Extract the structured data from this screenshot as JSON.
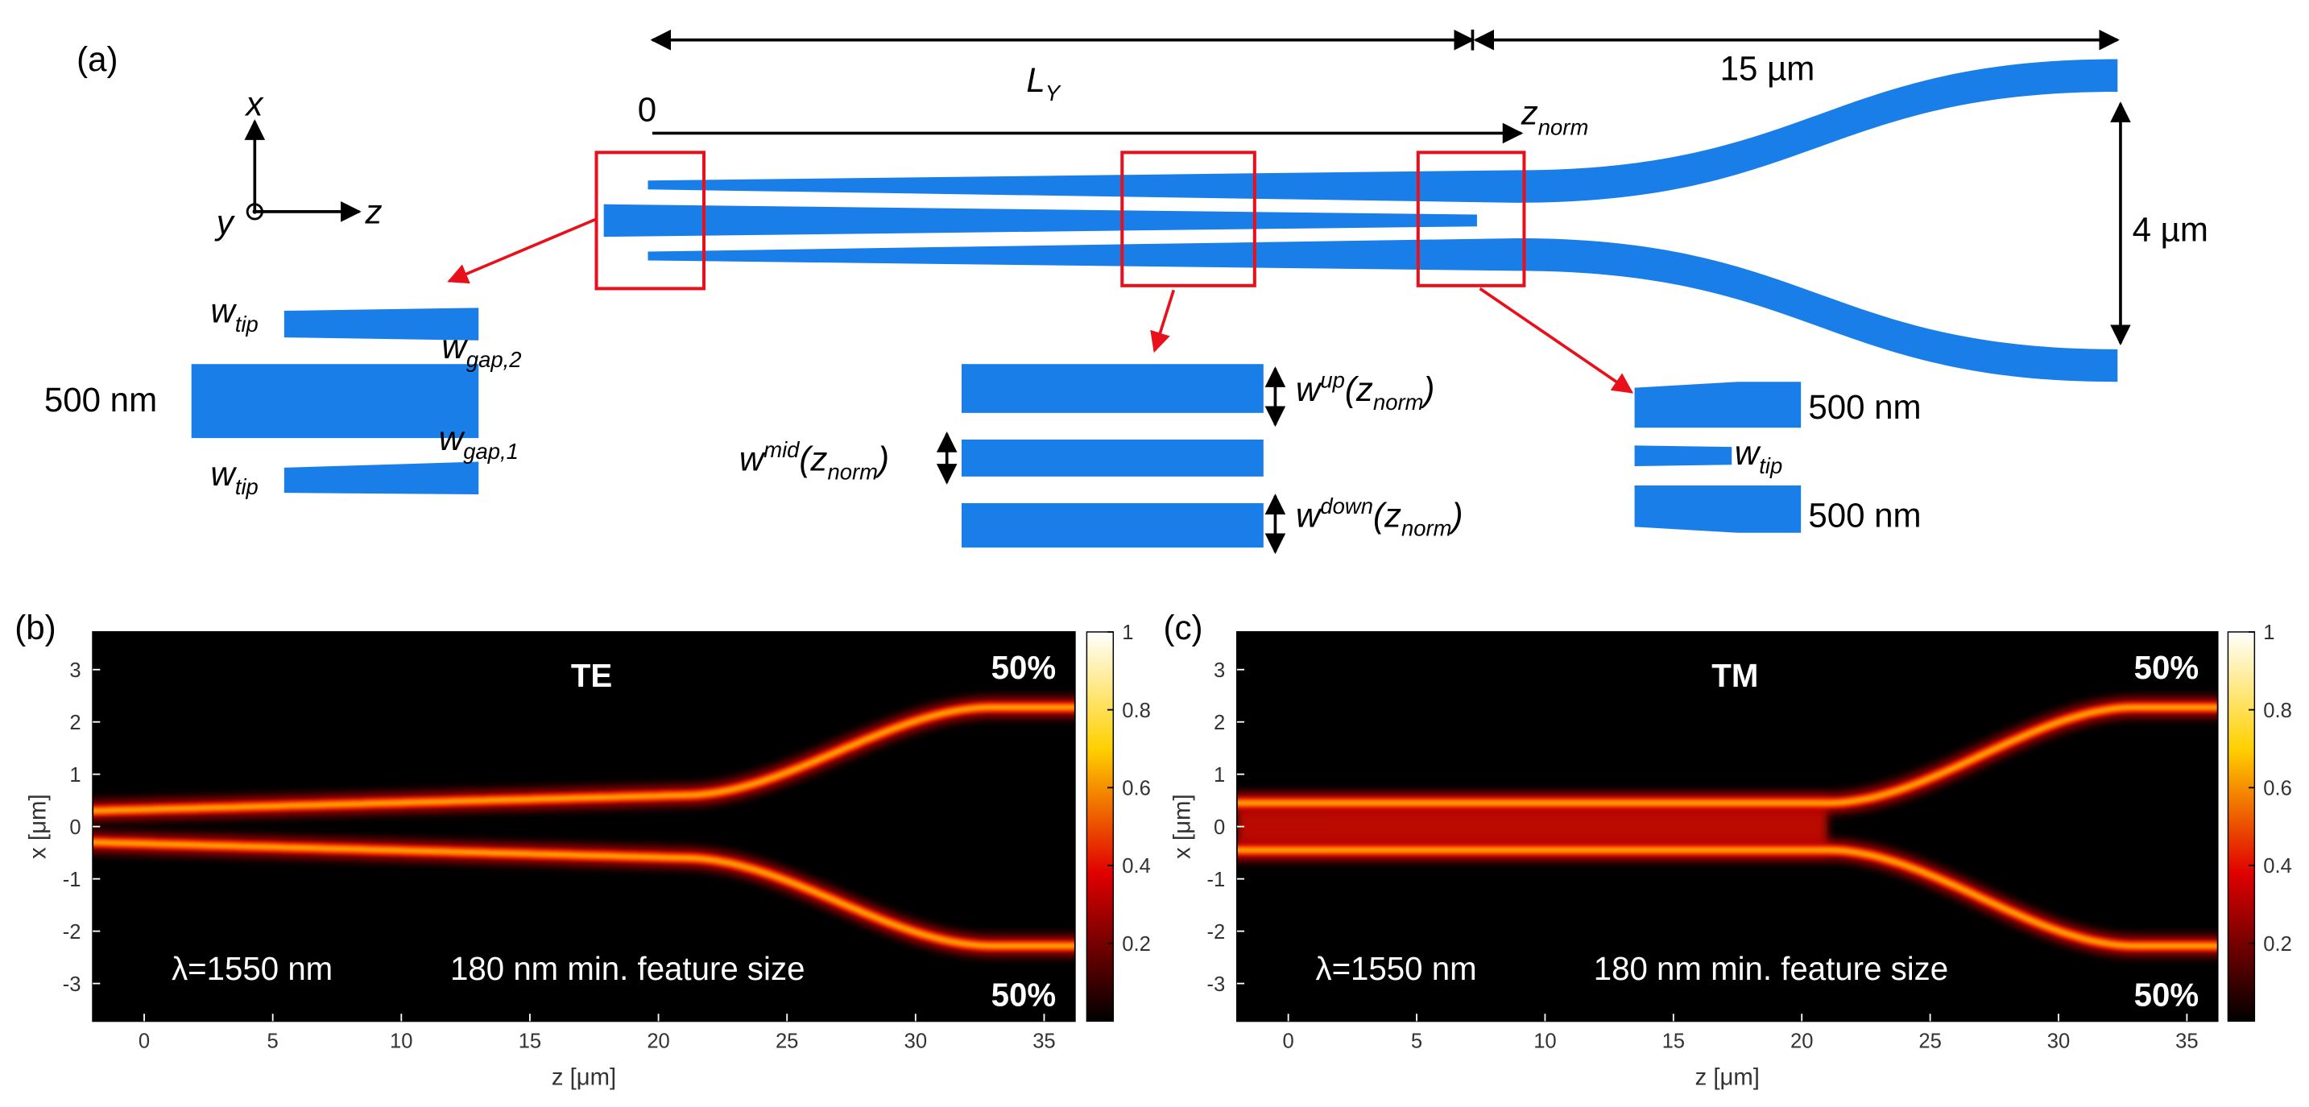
{
  "figure_a": {
    "label": "(a)",
    "axes": [
      "x",
      "y",
      "z"
    ],
    "length_label": {
      "main": "L",
      "sub": "Y"
    },
    "length_end": "15 µm",
    "origin": "0",
    "znorm": {
      "main": "z",
      "sub": "norm"
    },
    "height": "4 µm",
    "inset_left": {
      "w_tip_top": {
        "main": "w",
        "sub": "tip"
      },
      "w_gap_2": {
        "main": "w",
        "sub": "gap,2"
      },
      "width": "500 nm",
      "w_gap_1": {
        "main": "w",
        "sub": "gap,1"
      },
      "w_tip_bottom": {
        "main": "w",
        "sub": "tip"
      }
    },
    "inset_middle": {
      "w_up": [
        "w",
        "up",
        "(z",
        "norm",
        ")"
      ],
      "w_mid": [
        "w",
        "mid",
        "(z",
        "norm",
        ")"
      ],
      "w_down": [
        "w",
        "down",
        "(z",
        "norm",
        ")"
      ]
    },
    "inset_right": {
      "width_top": "500 nm",
      "w_tip": {
        "main": "w",
        "sub": "tip"
      },
      "width_bottom": "500 nm"
    }
  },
  "chart_data": [
    {
      "type": "heatmap",
      "label": "(b)",
      "mode": "TE",
      "x_label": "z [μm]",
      "y_label": "x [μm]",
      "xlim": [
        -2,
        36.2
      ],
      "ylim": [
        -3.72,
        3.72
      ],
      "xticks": [
        0,
        5,
        10,
        15,
        20,
        25,
        30,
        35
      ],
      "yticks": [
        -3,
        -2,
        -1,
        0,
        1,
        2,
        3
      ],
      "colormap": "hot",
      "clim": [
        0,
        1
      ],
      "cticks": [
        0.2,
        0.4,
        0.6,
        0.8,
        1
      ],
      "annotations": {
        "split_top": "50%",
        "split_bottom": "50%",
        "wavelength": "λ=1550 nm",
        "feature": "180 nm min. feature size"
      }
    },
    {
      "type": "heatmap",
      "label": "(c)",
      "mode": "TM",
      "x_label": "z [μm]",
      "y_label": "x [μm]",
      "xlim": [
        -2,
        36.2
      ],
      "ylim": [
        -3.72,
        3.72
      ],
      "xticks": [
        0,
        5,
        10,
        15,
        20,
        25,
        30,
        35
      ],
      "yticks": [
        -3,
        -2,
        -1,
        0,
        1,
        2,
        3
      ],
      "colormap": "hot",
      "clim": [
        0,
        1
      ],
      "cticks": [
        0.2,
        0.4,
        0.6,
        0.8,
        1
      ],
      "annotations": {
        "split_top": "50%",
        "split_bottom": "50%",
        "wavelength": "λ=1550 nm",
        "feature": "180 nm min. feature size"
      }
    }
  ]
}
